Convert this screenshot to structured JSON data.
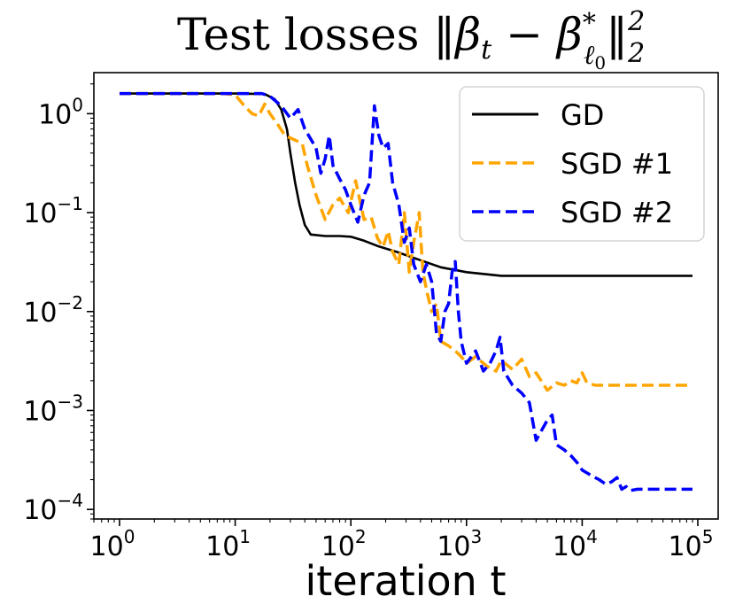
{
  "chart_data": {
    "type": "line",
    "title": {
      "prefix": "Test losses ",
      "norm_open": "‖",
      "beta1": "β",
      "sub_t": "t",
      "minus": " − ",
      "beta2": "β",
      "star": "*",
      "sub_l": "ℓ",
      "sub_l_sub": "0",
      "norm_close": "‖",
      "sup": "2",
      "sub": "2"
    },
    "xlabel": "iteration t",
    "ylabel": "",
    "xscale": "log",
    "yscale": "log",
    "xlim": [
      0.6,
      150000
    ],
    "ylim": [
      8e-05,
      2.6
    ],
    "grid": false,
    "legend_position": "top-right",
    "x_ticks": [
      {
        "value": 1,
        "base": "10",
        "exp": "0"
      },
      {
        "value": 10,
        "base": "10",
        "exp": "1"
      },
      {
        "value": 100,
        "base": "10",
        "exp": "2"
      },
      {
        "value": 1000,
        "base": "10",
        "exp": "3"
      },
      {
        "value": 10000,
        "base": "10",
        "exp": "4"
      },
      {
        "value": 100000,
        "base": "10",
        "exp": "5"
      }
    ],
    "y_ticks": [
      {
        "value": 1,
        "base": "10",
        "exp": "0"
      },
      {
        "value": 0.1,
        "base": "10",
        "exp": "−1"
      },
      {
        "value": 0.01,
        "base": "10",
        "exp": "−2"
      },
      {
        "value": 0.001,
        "base": "10",
        "exp": "−3"
      },
      {
        "value": 0.0001,
        "base": "10",
        "exp": "−4"
      }
    ],
    "series": [
      {
        "name": "GD",
        "color": "#000000",
        "style": "solid",
        "points": [
          [
            1,
            1.6
          ],
          [
            10,
            1.6
          ],
          [
            18,
            1.58
          ],
          [
            22,
            1.4
          ],
          [
            25,
            1.1
          ],
          [
            28,
            0.7
          ],
          [
            30,
            0.4
          ],
          [
            33,
            0.2
          ],
          [
            36,
            0.12
          ],
          [
            40,
            0.075
          ],
          [
            45,
            0.06
          ],
          [
            60,
            0.058
          ],
          [
            80,
            0.058
          ],
          [
            100,
            0.057
          ],
          [
            130,
            0.052
          ],
          [
            170,
            0.046
          ],
          [
            250,
            0.04
          ],
          [
            400,
            0.033
          ],
          [
            600,
            0.028
          ],
          [
            1000,
            0.025
          ],
          [
            2000,
            0.023
          ],
          [
            10000,
            0.023
          ],
          [
            90000,
            0.023
          ]
        ]
      },
      {
        "name": "SGD #1",
        "color": "#FFA500",
        "style": "dashed",
        "points": [
          [
            1,
            1.6
          ],
          [
            8,
            1.6
          ],
          [
            10,
            1.55
          ],
          [
            12,
            1.2
          ],
          [
            14,
            1.0
          ],
          [
            16,
            0.95
          ],
          [
            18,
            1.25
          ],
          [
            20,
            1.0
          ],
          [
            23,
            0.8
          ],
          [
            27,
            0.6
          ],
          [
            32,
            0.55
          ],
          [
            38,
            0.5
          ],
          [
            42,
            0.3
          ],
          [
            50,
            0.15
          ],
          [
            60,
            0.085
          ],
          [
            70,
            0.12
          ],
          [
            80,
            0.14
          ],
          [
            95,
            0.1
          ],
          [
            110,
            0.21
          ],
          [
            130,
            0.085
          ],
          [
            150,
            0.09
          ],
          [
            170,
            0.055
          ],
          [
            190,
            0.045
          ],
          [
            210,
            0.065
          ],
          [
            230,
            0.04
          ],
          [
            260,
            0.03
          ],
          [
            290,
            0.1
          ],
          [
            320,
            0.025
          ],
          [
            350,
            0.05
          ],
          [
            390,
            0.1
          ],
          [
            420,
            0.025
          ],
          [
            460,
            0.015
          ],
          [
            500,
            0.01
          ],
          [
            550,
            0.012
          ],
          [
            600,
            0.005
          ],
          [
            700,
            0.0045
          ],
          [
            800,
            0.004
          ],
          [
            900,
            0.0035
          ],
          [
            1000,
            0.003
          ],
          [
            1200,
            0.0035
          ],
          [
            1500,
            0.0028
          ],
          [
            1800,
            0.0025
          ],
          [
            2000,
            0.0032
          ],
          [
            2500,
            0.0026
          ],
          [
            3000,
            0.0033
          ],
          [
            3500,
            0.0022
          ],
          [
            4000,
            0.0024
          ],
          [
            5000,
            0.0016
          ],
          [
            6000,
            0.0019
          ],
          [
            7000,
            0.0018
          ],
          [
            8000,
            0.002
          ],
          [
            9000,
            0.0019
          ],
          [
            10000,
            0.0024
          ],
          [
            11000,
            0.0019
          ],
          [
            13000,
            0.0018
          ],
          [
            20000,
            0.0018
          ],
          [
            90000,
            0.0018
          ]
        ]
      },
      {
        "name": "SGD #2",
        "color": "#0000FF",
        "style": "dashed",
        "points": [
          [
            1,
            1.6
          ],
          [
            17,
            1.6
          ],
          [
            20,
            1.5
          ],
          [
            25,
            1.2
          ],
          [
            30,
            0.9
          ],
          [
            35,
            1.1
          ],
          [
            40,
            0.7
          ],
          [
            50,
            0.45
          ],
          [
            55,
            0.25
          ],
          [
            60,
            0.35
          ],
          [
            65,
            0.6
          ],
          [
            70,
            0.3
          ],
          [
            80,
            0.22
          ],
          [
            90,
            0.17
          ],
          [
            100,
            0.12
          ],
          [
            115,
            0.08
          ],
          [
            130,
            0.15
          ],
          [
            145,
            0.2
          ],
          [
            160,
            1.2
          ],
          [
            175,
            0.6
          ],
          [
            190,
            0.45
          ],
          [
            210,
            0.5
          ],
          [
            230,
            0.2
          ],
          [
            260,
            0.12
          ],
          [
            290,
            0.05
          ],
          [
            320,
            0.07
          ],
          [
            350,
            0.03
          ],
          [
            400,
            0.02
          ],
          [
            450,
            0.03
          ],
          [
            500,
            0.02
          ],
          [
            550,
            0.006
          ],
          [
            600,
            0.005
          ],
          [
            650,
            0.01
          ],
          [
            700,
            0.012
          ],
          [
            750,
            0.025
          ],
          [
            800,
            0.032
          ],
          [
            850,
            0.01
          ],
          [
            900,
            0.005
          ],
          [
            1000,
            0.003
          ],
          [
            1200,
            0.004
          ],
          [
            1400,
            0.0025
          ],
          [
            1600,
            0.003
          ],
          [
            1800,
            0.004
          ],
          [
            1950,
            0.0055
          ],
          [
            2100,
            0.0025
          ],
          [
            2500,
            0.0018
          ],
          [
            3000,
            0.0015
          ],
          [
            3500,
            0.0012
          ],
          [
            4000,
            0.0005
          ],
          [
            5000,
            0.0008
          ],
          [
            5500,
            0.0009
          ],
          [
            6000,
            0.00045
          ],
          [
            7000,
            0.0004
          ],
          [
            8000,
            0.00035
          ],
          [
            9000,
            0.0003
          ],
          [
            10000,
            0.00025
          ],
          [
            12000,
            0.00022
          ],
          [
            14000,
            0.0002
          ],
          [
            16000,
            0.00018
          ],
          [
            18000,
            0.00019
          ],
          [
            20000,
            0.00021
          ],
          [
            22000,
            0.00016
          ],
          [
            24000,
            0.00017
          ],
          [
            26000,
            0.000155
          ],
          [
            30000,
            0.00016
          ],
          [
            40000,
            0.00016
          ],
          [
            90000,
            0.00016
          ]
        ]
      }
    ]
  }
}
